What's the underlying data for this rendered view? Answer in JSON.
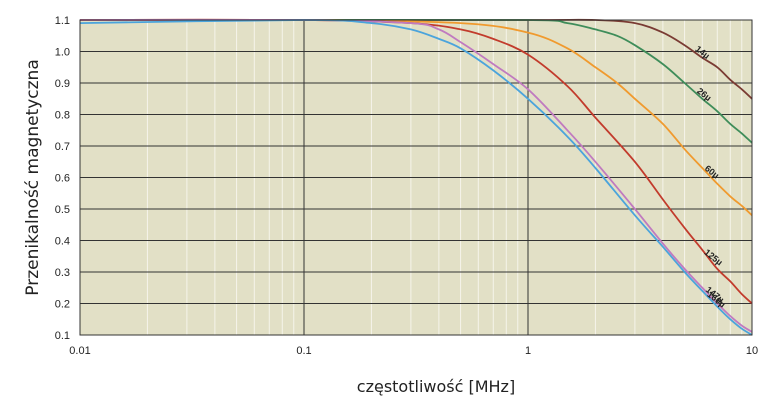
{
  "chart_data": {
    "type": "line",
    "title": "",
    "xlabel": "częstotliwość [MHz]",
    "ylabel": "Przenikalność magnetyczna",
    "x_scale": "log",
    "xlim": [
      0.01,
      10
    ],
    "ylim": [
      0.1,
      1.1
    ],
    "grid": true,
    "x_major_ticks": [
      0.01,
      0.1,
      1,
      10
    ],
    "x_tick_labels": [
      "0.01",
      "0.1",
      "1",
      "10"
    ],
    "y_ticks": [
      0.1,
      0.2,
      0.3,
      0.4,
      0.5,
      0.6,
      0.7,
      0.8,
      0.9,
      1.0,
      1.1
    ],
    "y_tick_labels": [
      "0.1",
      "0.2",
      "0.3",
      "0.4",
      "0.5",
      "0.6",
      "0.7",
      "0.8",
      "0.9",
      "1.0",
      "1.1"
    ],
    "series": [
      {
        "name": "14µ",
        "color": "#7a3b33",
        "x": [
          0.01,
          0.1,
          1,
          2,
          3,
          4,
          5,
          6,
          7,
          8,
          9,
          10
        ],
        "y": [
          1.1,
          1.1,
          1.1,
          1.1,
          1.09,
          1.06,
          1.02,
          0.98,
          0.95,
          0.91,
          0.88,
          0.85
        ]
      },
      {
        "name": "26µ",
        "color": "#3f8d5a",
        "x": [
          0.01,
          0.1,
          1,
          1.5,
          2,
          2.5,
          3,
          4,
          5,
          6,
          7,
          8,
          9,
          10
        ],
        "y": [
          1.1,
          1.1,
          1.1,
          1.09,
          1.07,
          1.05,
          1.02,
          0.96,
          0.9,
          0.85,
          0.81,
          0.77,
          0.74,
          0.71
        ]
      },
      {
        "name": "60µ",
        "color": "#f09a2e",
        "x": [
          0.01,
          0.1,
          0.5,
          1,
          1.5,
          2,
          2.5,
          3,
          4,
          5,
          6,
          7,
          8,
          9,
          10
        ],
        "y": [
          1.1,
          1.1,
          1.09,
          1.06,
          1.01,
          0.95,
          0.9,
          0.85,
          0.77,
          0.69,
          0.63,
          0.58,
          0.54,
          0.51,
          0.48
        ]
      },
      {
        "name": "125µ",
        "color": "#c23b2c",
        "x": [
          0.01,
          0.1,
          0.3,
          0.5,
          0.7,
          1,
          1.5,
          2,
          3,
          4,
          5,
          6,
          7,
          8,
          9,
          10
        ],
        "y": [
          1.1,
          1.1,
          1.09,
          1.07,
          1.04,
          0.99,
          0.89,
          0.79,
          0.65,
          0.53,
          0.44,
          0.37,
          0.31,
          0.27,
          0.23,
          0.2
        ]
      },
      {
        "name": "147µ",
        "color": "#c07ac0",
        "x": [
          0.01,
          0.1,
          0.3,
          0.4,
          0.5,
          0.7,
          1,
          1.5,
          2,
          3,
          4,
          5,
          6,
          7,
          8,
          9,
          10
        ],
        "y": [
          1.1,
          1.1,
          1.09,
          1.07,
          1.03,
          0.96,
          0.88,
          0.75,
          0.65,
          0.5,
          0.39,
          0.31,
          0.25,
          0.2,
          0.16,
          0.13,
          0.11
        ]
      },
      {
        "name": "160µ",
        "color": "#4ba4dc",
        "x": [
          0.01,
          0.1,
          0.2,
          0.3,
          0.4,
          0.5,
          0.7,
          1,
          1.5,
          2,
          3,
          4,
          5,
          6,
          7,
          8,
          9,
          10
        ],
        "y": [
          1.09,
          1.1,
          1.09,
          1.07,
          1.04,
          1.01,
          0.94,
          0.85,
          0.73,
          0.63,
          0.48,
          0.38,
          0.3,
          0.24,
          0.19,
          0.15,
          0.12,
          0.1
        ]
      }
    ]
  },
  "colors": {
    "plot_background": "#e2e0c6",
    "major_grid": "#333333",
    "minor_grid": "#f5f4ea"
  }
}
